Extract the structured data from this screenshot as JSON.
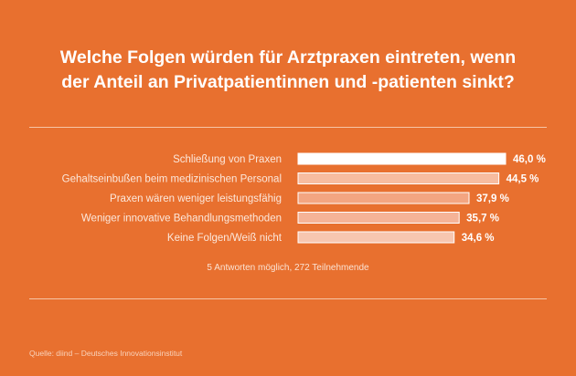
{
  "title_lines": [
    "Welche Folgen würden für Arztpraxen eintreten, wenn",
    "der Anteil an Privatpatientinnen und -patienten sinkt?"
  ],
  "note": "5 Antworten möglich, 272 Teilnehmende",
  "source": "Quelle: diind – Deutsches Innovationsinstitut",
  "colors": {
    "background": "#E8702F",
    "bar_colors": [
      "#FFFFFF",
      "#F7BCA0",
      "#F3A581",
      "#F5B397",
      "#F7C6B0"
    ],
    "bar_stroke": "#FFFFFF",
    "label_text": "#FCE8DC",
    "value_text": "#FFFFFF",
    "rule": "#F6C5A6"
  },
  "chart_data": {
    "type": "bar",
    "orientation": "horizontal",
    "categories": [
      "Schließung von Praxen",
      "Gehaltseinbußen beim medizinischen Personal",
      "Praxen wären weniger leistungsfähig",
      "Weniger innovative Behandlungsmethoden",
      "Keine Folgen/Weiß nicht"
    ],
    "values": [
      46.0,
      44.5,
      37.9,
      35.7,
      34.6
    ],
    "value_labels": [
      "46,0 %",
      "44,5 %",
      "37,9 %",
      "35,7 %",
      "34,6 %"
    ],
    "unit": "%",
    "title": "Welche Folgen würden für Arztpraxen eintreten, wenn der Anteil an Privatpatientinnen und -patienten sinkt?",
    "xlabel": "",
    "ylabel": "",
    "grid": false,
    "legend": "none"
  }
}
